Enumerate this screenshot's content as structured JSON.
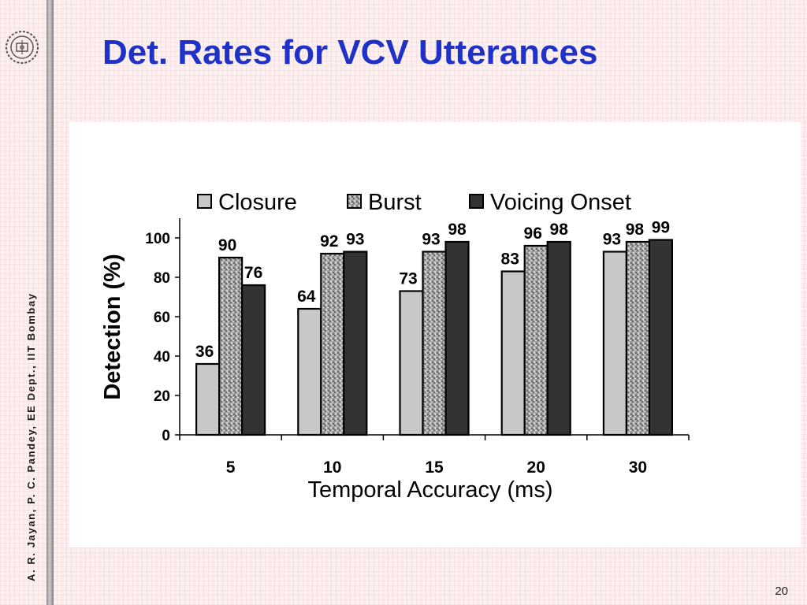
{
  "slide": {
    "title": "Det. Rates for VCV Utterances",
    "side_credit": "A. R. Jayan, P. C. Pandey, EE Dept.,  IIT Bombay",
    "page_number": "20",
    "logo_icon": "iit-bombay-emblem-icon"
  },
  "colors": {
    "title": "#1e32c8",
    "closure": "#c8c8c8",
    "burst": "#a0a0a0",
    "voicing_onset": "#333333"
  },
  "chart_data": {
    "type": "bar",
    "title": "",
    "xlabel": "Temporal Accuracy (ms)",
    "ylabel": "Detection (%)",
    "categories": [
      "5",
      "10",
      "15",
      "20",
      "30"
    ],
    "ylim": [
      0,
      110
    ],
    "yticks": [
      "0",
      "20",
      "40",
      "60",
      "80",
      "100"
    ],
    "grid": false,
    "legend": "top",
    "series": [
      {
        "name": "Closure",
        "values": [
          36,
          64,
          73,
          83,
          93
        ],
        "labels": [
          "36",
          "64",
          "73",
          "83",
          "93"
        ]
      },
      {
        "name": "Burst",
        "values": [
          90,
          92,
          93,
          96,
          98
        ],
        "labels": [
          "90",
          "92",
          "93",
          "96",
          "98"
        ]
      },
      {
        "name": "Voicing Onset",
        "values": [
          76,
          93,
          98,
          98,
          99
        ],
        "labels": [
          "76",
          "93",
          "98",
          "98",
          "99"
        ]
      }
    ]
  }
}
